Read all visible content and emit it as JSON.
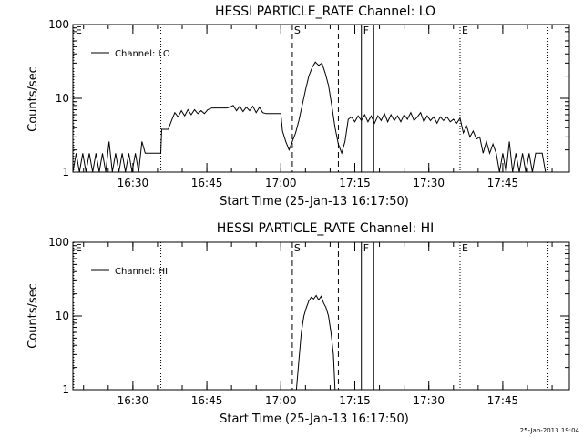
{
  "chart_data": [
    {
      "type": "line",
      "title": "HESSI PARTICLE_RATE Channel: LO",
      "xlabel": "Start Time (25-Jan-13 16:17:50)",
      "ylabel": "Counts/sec",
      "yscale": "log",
      "ylim": [
        1,
        100
      ],
      "xlim": [
        "16:17:50",
        "17:58:30"
      ],
      "y_ticks": [
        "1",
        "10",
        "100"
      ],
      "x_ticks": [
        "16:30",
        "16:45",
        "17:00",
        "17:15",
        "17:30",
        "17:45"
      ],
      "legend": "Channel: LO",
      "legend_position": "top-left",
      "grid": false,
      "markers": [
        {
          "label": "E",
          "time": "16:18:00",
          "style": "dotted"
        },
        {
          "label": "",
          "time": "16:35:40",
          "style": "dotted"
        },
        {
          "label": "S",
          "time": "17:02:20",
          "style": "dashed"
        },
        {
          "label": "",
          "time": "17:11:40",
          "style": "dashed"
        },
        {
          "label": "F",
          "time": "17:16:20",
          "style": "solid"
        },
        {
          "label": "",
          "time": "17:18:50",
          "style": "solid"
        },
        {
          "label": "E",
          "time": "17:36:20",
          "style": "dotted"
        },
        {
          "label": "",
          "time": "17:54:10",
          "style": "dotted"
        }
      ],
      "series": [
        {
          "name": "Channel: LO",
          "points": [
            [
              "16:17:50",
              1.0
            ],
            [
              "16:18:30",
              1.8
            ],
            [
              "16:19:10",
              1.0
            ],
            [
              "16:19:50",
              1.8
            ],
            [
              "16:20:30",
              1.0
            ],
            [
              "16:21:10",
              1.8
            ],
            [
              "16:21:50",
              1.0
            ],
            [
              "16:22:30",
              1.8
            ],
            [
              "16:23:10",
              1.0
            ],
            [
              "16:23:50",
              1.8
            ],
            [
              "16:24:30",
              1.0
            ],
            [
              "16:25:10",
              2.6
            ],
            [
              "16:25:50",
              1.0
            ],
            [
              "16:26:30",
              1.8
            ],
            [
              "16:27:10",
              1.0
            ],
            [
              "16:27:50",
              1.8
            ],
            [
              "16:28:30",
              1.0
            ],
            [
              "16:29:10",
              1.8
            ],
            [
              "16:29:50",
              1.0
            ],
            [
              "16:30:30",
              1.8
            ],
            [
              "16:31:10",
              1.0
            ],
            [
              "16:31:50",
              2.6
            ],
            [
              "16:32:30",
              1.8
            ],
            [
              "16:33:10",
              1.8
            ],
            [
              "16:34:30",
              1.8
            ],
            [
              "16:35:40",
              1.8
            ],
            [
              "16:35:50",
              3.8
            ],
            [
              "16:37:10",
              3.8
            ],
            [
              "16:37:50",
              5.0
            ],
            [
              "16:38:30",
              6.4
            ],
            [
              "16:39:10",
              5.6
            ],
            [
              "16:39:50",
              6.8
            ],
            [
              "16:40:30",
              5.8
            ],
            [
              "16:41:10",
              7.0
            ],
            [
              "16:41:50",
              6.0
            ],
            [
              "16:42:30",
              7.0
            ],
            [
              "16:43:10",
              6.2
            ],
            [
              "16:43:50",
              6.8
            ],
            [
              "16:44:30",
              6.2
            ],
            [
              "16:45:10",
              7.0
            ],
            [
              "16:46:00",
              7.4
            ],
            [
              "16:49:00",
              7.4
            ],
            [
              "16:49:40",
              7.6
            ],
            [
              "16:50:20",
              8.0
            ],
            [
              "16:51:00",
              6.8
            ],
            [
              "16:51:40",
              7.8
            ],
            [
              "16:52:20",
              6.6
            ],
            [
              "16:53:00",
              7.6
            ],
            [
              "16:53:40",
              6.8
            ],
            [
              "16:54:20",
              7.8
            ],
            [
              "16:55:00",
              6.4
            ],
            [
              "16:55:40",
              7.6
            ],
            [
              "16:56:20",
              6.4
            ],
            [
              "16:57:00",
              6.2
            ],
            [
              "16:58:10",
              6.2
            ],
            [
              "17:00:00",
              6.2
            ],
            [
              "17:00:20",
              3.6
            ],
            [
              "17:01:00",
              2.6
            ],
            [
              "17:01:40",
              2.0
            ],
            [
              "17:02:20",
              2.6
            ],
            [
              "17:03:00",
              3.4
            ],
            [
              "17:03:40",
              5.0
            ],
            [
              "17:04:20",
              8.0
            ],
            [
              "17:05:00",
              13.0
            ],
            [
              "17:05:40",
              20.0
            ],
            [
              "17:06:20",
              26.0
            ],
            [
              "17:07:00",
              31.0
            ],
            [
              "17:07:40",
              28.0
            ],
            [
              "17:08:20",
              30.0
            ],
            [
              "17:09:00",
              22.0
            ],
            [
              "17:09:40",
              15.0
            ],
            [
              "17:10:20",
              8.0
            ],
            [
              "17:11:00",
              4.0
            ],
            [
              "17:11:40",
              2.4
            ],
            [
              "17:12:20",
              1.8
            ],
            [
              "17:13:00",
              2.6
            ],
            [
              "17:13:40",
              5.2
            ],
            [
              "17:14:20",
              5.6
            ],
            [
              "17:15:00",
              4.8
            ],
            [
              "17:15:40",
              5.8
            ],
            [
              "17:16:20",
              5.0
            ],
            [
              "17:17:00",
              6.0
            ],
            [
              "17:17:40",
              4.8
            ],
            [
              "17:18:20",
              5.8
            ],
            [
              "17:19:00",
              4.6
            ],
            [
              "17:19:40",
              5.8
            ],
            [
              "17:20:20",
              5.0
            ],
            [
              "17:21:00",
              6.2
            ],
            [
              "17:21:40",
              4.8
            ],
            [
              "17:22:20",
              6.0
            ],
            [
              "17:23:00",
              5.0
            ],
            [
              "17:23:40",
              5.8
            ],
            [
              "17:24:20",
              4.8
            ],
            [
              "17:25:00",
              6.0
            ],
            [
              "17:25:40",
              5.2
            ],
            [
              "17:26:20",
              6.4
            ],
            [
              "17:27:00",
              5.0
            ],
            [
              "17:27:40",
              5.6
            ],
            [
              "17:28:20",
              6.4
            ],
            [
              "17:29:00",
              4.8
            ],
            [
              "17:29:40",
              5.8
            ],
            [
              "17:30:20",
              5.0
            ],
            [
              "17:31:00",
              5.6
            ],
            [
              "17:31:40",
              4.6
            ],
            [
              "17:32:20",
              5.6
            ],
            [
              "17:33:00",
              5.0
            ],
            [
              "17:33:40",
              5.6
            ],
            [
              "17:34:20",
              4.8
            ],
            [
              "17:35:00",
              5.2
            ],
            [
              "17:35:40",
              4.6
            ],
            [
              "17:36:20",
              5.4
            ],
            [
              "17:37:00",
              3.4
            ],
            [
              "17:37:40",
              4.2
            ],
            [
              "17:38:20",
              3.0
            ],
            [
              "17:39:00",
              3.6
            ],
            [
              "17:39:40",
              2.8
            ],
            [
              "17:40:20",
              3.0
            ],
            [
              "17:41:00",
              1.8
            ],
            [
              "17:41:40",
              2.6
            ],
            [
              "17:42:20",
              1.8
            ],
            [
              "17:43:00",
              2.4
            ],
            [
              "17:43:40",
              1.8
            ],
            [
              "17:44:20",
              1.0
            ],
            [
              "17:45:00",
              1.8
            ],
            [
              "17:45:40",
              1.0
            ],
            [
              "17:46:20",
              2.6
            ],
            [
              "17:47:00",
              1.0
            ],
            [
              "17:47:40",
              1.8
            ],
            [
              "17:48:20",
              1.0
            ],
            [
              "17:49:00",
              1.8
            ],
            [
              "17:49:40",
              1.0
            ],
            [
              "17:50:20",
              1.8
            ],
            [
              "17:51:00",
              1.0
            ],
            [
              "17:51:40",
              1.8
            ],
            [
              "17:52:20",
              1.8
            ],
            [
              "17:53:00",
              1.8
            ],
            [
              "17:53:40",
              1.0
            ]
          ]
        }
      ]
    },
    {
      "type": "line",
      "title": "HESSI PARTICLE_RATE Channel: HI",
      "xlabel": "Start Time (25-Jan-13 16:17:50)",
      "ylabel": "Counts/sec",
      "yscale": "log",
      "ylim": [
        1,
        100
      ],
      "xlim": [
        "16:17:50",
        "17:58:30"
      ],
      "y_ticks": [
        "1",
        "10",
        "100"
      ],
      "x_ticks": [
        "16:30",
        "16:45",
        "17:00",
        "17:15",
        "17:30",
        "17:45"
      ],
      "legend": "Channel: HI",
      "legend_position": "top-left",
      "grid": false,
      "markers": [
        {
          "label": "E",
          "time": "16:18:00",
          "style": "dotted"
        },
        {
          "label": "",
          "time": "16:35:40",
          "style": "dotted"
        },
        {
          "label": "S",
          "time": "17:02:20",
          "style": "dashed"
        },
        {
          "label": "",
          "time": "17:11:40",
          "style": "dashed"
        },
        {
          "label": "F",
          "time": "17:16:20",
          "style": "solid"
        },
        {
          "label": "",
          "time": "17:18:50",
          "style": "solid"
        },
        {
          "label": "E",
          "time": "17:36:20",
          "style": "dotted"
        },
        {
          "label": "",
          "time": "17:54:10",
          "style": "dotted"
        }
      ],
      "series": [
        {
          "name": "Channel: HI",
          "points": [
            [
              "17:03:10",
              1.0
            ],
            [
              "17:03:40",
              2.5
            ],
            [
              "17:04:10",
              6.0
            ],
            [
              "17:04:40",
              10.0
            ],
            [
              "17:05:10",
              13.0
            ],
            [
              "17:05:40",
              16.0
            ],
            [
              "17:06:10",
              18.0
            ],
            [
              "17:06:40",
              17.0
            ],
            [
              "17:07:10",
              19.0
            ],
            [
              "17:07:40",
              16.5
            ],
            [
              "17:08:10",
              18.5
            ],
            [
              "17:08:40",
              15.0
            ],
            [
              "17:09:10",
              13.0
            ],
            [
              "17:09:40",
              10.0
            ],
            [
              "17:10:10",
              6.0
            ],
            [
              "17:10:40",
              3.0
            ],
            [
              "17:11:00",
              1.0
            ]
          ]
        }
      ]
    }
  ],
  "footer": {
    "timestamp": "25-Jan-2013 19:04"
  }
}
